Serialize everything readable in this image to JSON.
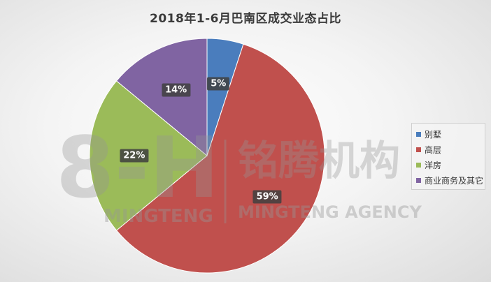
{
  "chart_data": {
    "type": "pie",
    "title": "2018年1-6月巴南区成交业态占比",
    "categories": [
      "别墅",
      "高层",
      "洋房",
      "商业商务及其它"
    ],
    "values": [
      5,
      59,
      22,
      14
    ],
    "data_labels": [
      "5%",
      "59%",
      "22%",
      "14%"
    ],
    "colors": [
      "#4a7dbd",
      "#c0504d",
      "#9bbb59",
      "#8064a2"
    ],
    "legend_position": "right"
  },
  "watermark": {
    "logo_text": "8-H",
    "brand_cn": "铭腾机构",
    "brand_en_left": "MINGTENG",
    "brand_en_right": "MINGTENG AGENCY"
  }
}
